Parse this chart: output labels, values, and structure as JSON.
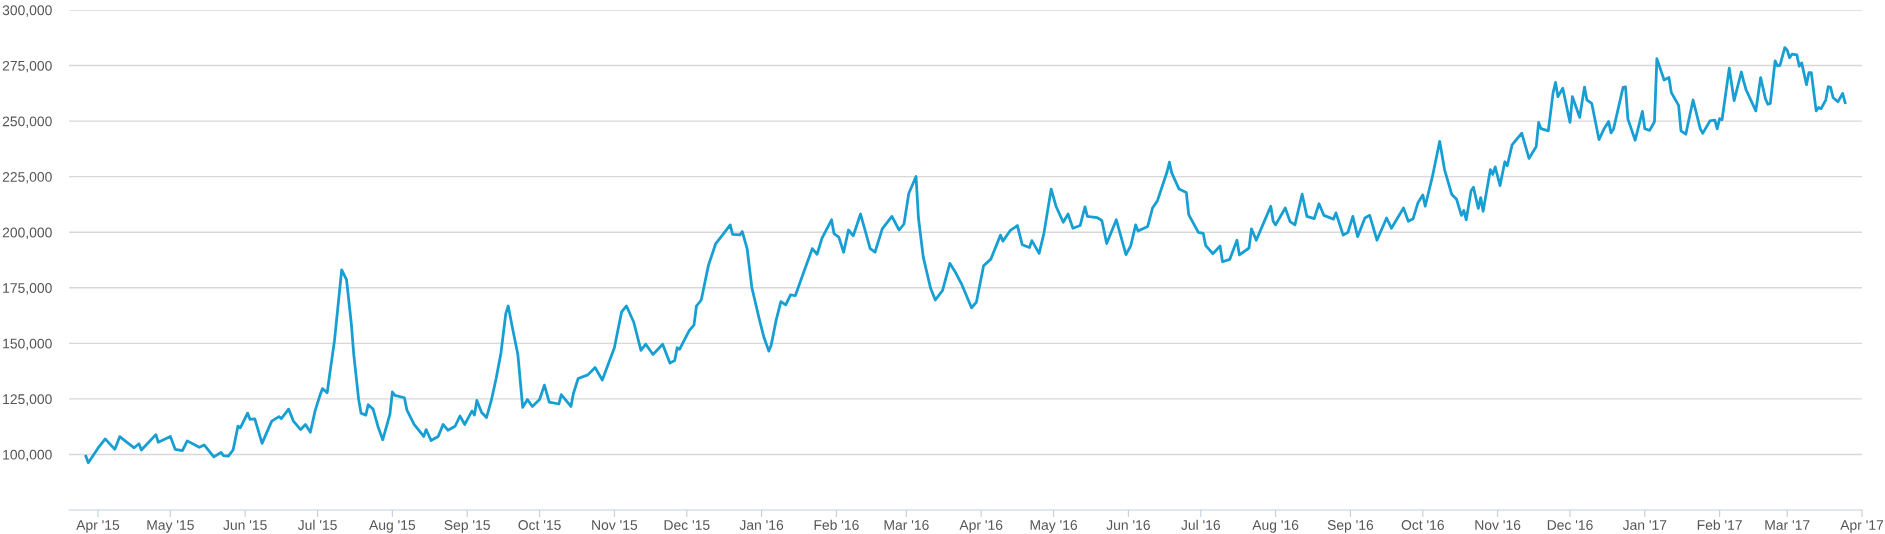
{
  "chart_data": {
    "type": "line",
    "grid": "y",
    "marker": "none",
    "line_style": "solid",
    "xlim": [
      "2015-03-20",
      "2017-04-01"
    ],
    "ylim": [
      75000,
      300000
    ],
    "xticks": [
      {
        "value": "2015-04-01",
        "label": "Apr '15"
      },
      {
        "value": "2015-05-01",
        "label": "May '15"
      },
      {
        "value": "2015-06-01",
        "label": "Jun '15"
      },
      {
        "value": "2015-07-01",
        "label": "Jul '15"
      },
      {
        "value": "2015-08-01",
        "label": "Aug '15"
      },
      {
        "value": "2015-09-01",
        "label": "Sep '15"
      },
      {
        "value": "2015-10-01",
        "label": "Oct '15"
      },
      {
        "value": "2015-11-01",
        "label": "Nov '15"
      },
      {
        "value": "2015-12-01",
        "label": "Dec '15"
      },
      {
        "value": "2016-01-01",
        "label": "Jan '16"
      },
      {
        "value": "2016-02-01",
        "label": "Feb '16"
      },
      {
        "value": "2016-03-01",
        "label": "Mar '16"
      },
      {
        "value": "2016-04-01",
        "label": "Apr '16"
      },
      {
        "value": "2016-05-01",
        "label": "May '16"
      },
      {
        "value": "2016-06-01",
        "label": "Jun '16"
      },
      {
        "value": "2016-07-01",
        "label": "Jul '16"
      },
      {
        "value": "2016-08-01",
        "label": "Aug '16"
      },
      {
        "value": "2016-09-01",
        "label": "Sep '16"
      },
      {
        "value": "2016-10-01",
        "label": "Oct '16"
      },
      {
        "value": "2016-11-01",
        "label": "Nov '16"
      },
      {
        "value": "2016-12-01",
        "label": "Dec '16"
      },
      {
        "value": "2017-01-01",
        "label": "Jan '17"
      },
      {
        "value": "2017-02-01",
        "label": "Feb '17"
      },
      {
        "value": "2017-03-01",
        "label": "Mar '17"
      },
      {
        "value": "2017-04-01",
        "label": "Apr '17"
      }
    ],
    "yticks": [
      {
        "value": 100000,
        "label": "100,000"
      },
      {
        "value": 125000,
        "label": "125,000"
      },
      {
        "value": 150000,
        "label": "150,000"
      },
      {
        "value": 175000,
        "label": "175,000"
      },
      {
        "value": 200000,
        "label": "200,000"
      },
      {
        "value": 225000,
        "label": "225,000"
      },
      {
        "value": 250000,
        "label": "250,000"
      },
      {
        "value": 275000,
        "label": "275,000"
      },
      {
        "value": 300000,
        "label": "300,000"
      }
    ],
    "x": [
      "2015-03-27",
      "2015-03-28",
      "2015-04-01",
      "2015-04-04",
      "2015-04-08",
      "2015-04-10",
      "2015-04-16",
      "2015-04-18",
      "2015-04-19",
      "2015-04-25",
      "2015-04-26",
      "2015-05-01",
      "2015-05-03",
      "2015-05-06",
      "2015-05-08",
      "2015-05-13",
      "2015-05-15",
      "2015-05-19",
      "2015-05-22",
      "2015-05-23",
      "2015-05-25",
      "2015-05-27",
      "2015-05-29",
      "2015-05-30",
      "2015-06-02",
      "2015-06-03",
      "2015-06-05",
      "2015-06-08",
      "2015-06-12",
      "2015-06-15",
      "2015-06-16",
      "2015-06-19",
      "2015-06-21",
      "2015-06-24",
      "2015-06-26",
      "2015-06-28",
      "2015-06-30",
      "2015-07-02",
      "2015-07-03",
      "2015-07-05",
      "2015-07-06",
      "2015-07-08",
      "2015-07-11",
      "2015-07-13",
      "2015-07-15",
      "2015-07-16",
      "2015-07-18",
      "2015-07-19",
      "2015-07-21",
      "2015-07-22",
      "2015-07-24",
      "2015-07-26",
      "2015-07-28",
      "2015-07-31",
      "2015-08-01",
      "2015-08-02",
      "2015-08-06",
      "2015-08-07",
      "2015-08-10",
      "2015-08-14",
      "2015-08-15",
      "2015-08-17",
      "2015-08-20",
      "2015-08-22",
      "2015-08-24",
      "2015-08-27",
      "2015-08-29",
      "2015-08-31",
      "2015-09-03",
      "2015-09-04",
      "2015-09-05",
      "2015-09-07",
      "2015-09-09",
      "2015-09-11",
      "2015-09-13",
      "2015-09-15",
      "2015-09-17",
      "2015-09-18",
      "2015-09-20",
      "2015-09-22",
      "2015-09-24",
      "2015-09-26",
      "2015-09-28",
      "2015-10-01",
      "2015-10-03",
      "2015-10-05",
      "2015-10-09",
      "2015-10-10",
      "2015-10-14",
      "2015-10-15",
      "2015-10-17",
      "2015-10-21",
      "2015-10-24",
      "2015-10-27",
      "2015-11-01",
      "2015-11-04",
      "2015-11-06",
      "2015-11-09",
      "2015-11-12",
      "2015-11-14",
      "2015-11-17",
      "2015-11-21",
      "2015-11-24",
      "2015-11-26",
      "2015-11-27",
      "2015-11-28",
      "2015-12-02",
      "2015-12-04",
      "2015-12-05",
      "2015-12-07",
      "2015-12-10",
      "2015-12-13",
      "2015-12-16",
      "2015-12-19",
      "2015-12-20",
      "2015-12-23",
      "2015-12-24",
      "2015-12-26",
      "2015-12-28",
      "2015-12-31",
      "2016-01-02",
      "2016-01-04",
      "2016-01-05",
      "2016-01-07",
      "2016-01-09",
      "2016-01-11",
      "2016-01-13",
      "2016-01-15",
      "2016-01-18",
      "2016-01-22",
      "2016-01-24",
      "2016-01-26",
      "2016-01-30",
      "2016-01-31",
      "2016-02-02",
      "2016-02-04",
      "2016-02-06",
      "2016-02-08",
      "2016-02-11",
      "2016-02-15",
      "2016-02-17",
      "2016-02-20",
      "2016-02-24",
      "2016-02-27",
      "2016-02-29",
      "2016-03-02",
      "2016-03-05",
      "2016-03-06",
      "2016-03-08",
      "2016-03-11",
      "2016-03-13",
      "2016-03-16",
      "2016-03-19",
      "2016-03-21",
      "2016-03-24",
      "2016-03-28",
      "2016-03-30",
      "2016-04-02",
      "2016-04-05",
      "2016-04-09",
      "2016-04-10",
      "2016-04-13",
      "2016-04-16",
      "2016-04-18",
      "2016-04-21",
      "2016-04-22",
      "2016-04-25",
      "2016-04-27",
      "2016-04-30",
      "2016-05-02",
      "2016-05-05",
      "2016-05-07",
      "2016-05-09",
      "2016-05-12",
      "2016-05-14",
      "2016-05-15",
      "2016-05-19",
      "2016-05-21",
      "2016-05-23",
      "2016-05-27",
      "2016-05-31",
      "2016-06-02",
      "2016-06-04",
      "2016-06-05",
      "2016-06-09",
      "2016-06-11",
      "2016-06-13",
      "2016-06-17",
      "2016-06-18",
      "2016-06-19",
      "2016-06-22",
      "2016-06-25",
      "2016-06-26",
      "2016-06-30",
      "2016-07-02",
      "2016-07-03",
      "2016-07-06",
      "2016-07-09",
      "2016-07-10",
      "2016-07-13",
      "2016-07-16",
      "2016-07-17",
      "2016-07-21",
      "2016-07-22",
      "2016-07-24",
      "2016-07-27",
      "2016-07-30",
      "2016-07-31",
      "2016-08-01",
      "2016-08-05",
      "2016-08-07",
      "2016-08-09",
      "2016-08-12",
      "2016-08-14",
      "2016-08-17",
      "2016-08-19",
      "2016-08-21",
      "2016-08-25",
      "2016-08-26",
      "2016-08-29",
      "2016-08-31",
      "2016-09-02",
      "2016-09-04",
      "2016-09-07",
      "2016-09-09",
      "2016-09-12",
      "2016-09-16",
      "2016-09-18",
      "2016-09-23",
      "2016-09-25",
      "2016-09-27",
      "2016-09-29",
      "2016-10-01",
      "2016-10-02",
      "2016-10-05",
      "2016-10-08",
      "2016-10-10",
      "2016-10-13",
      "2016-10-15",
      "2016-10-17",
      "2016-10-18",
      "2016-10-19",
      "2016-10-21",
      "2016-10-22",
      "2016-10-24",
      "2016-10-25",
      "2016-10-26",
      "2016-10-29",
      "2016-10-30",
      "2016-10-31",
      "2016-11-02",
      "2016-11-04",
      "2016-11-05",
      "2016-11-07",
      "2016-11-11",
      "2016-11-14",
      "2016-11-17",
      "2016-11-18",
      "2016-11-19",
      "2016-11-22",
      "2016-11-24",
      "2016-11-25",
      "2016-11-26",
      "2016-11-28",
      "2016-12-01",
      "2016-12-02",
      "2016-12-05",
      "2016-12-07",
      "2016-12-08",
      "2016-12-10",
      "2016-12-13",
      "2016-12-15",
      "2016-12-17",
      "2016-12-18",
      "2016-12-19",
      "2016-12-23",
      "2016-12-24",
      "2016-12-25",
      "2016-12-28",
      "2016-12-31",
      "2017-01-01",
      "2017-01-03",
      "2017-01-05",
      "2017-01-06",
      "2017-01-09",
      "2017-01-11",
      "2017-01-12",
      "2017-01-15",
      "2017-01-16",
      "2017-01-18",
      "2017-01-19",
      "2017-01-21",
      "2017-01-24",
      "2017-01-25",
      "2017-01-28",
      "2017-01-30",
      "2017-01-31",
      "2017-02-01",
      "2017-02-02",
      "2017-02-05",
      "2017-02-07",
      "2017-02-10",
      "2017-02-11",
      "2017-02-12",
      "2017-02-16",
      "2017-02-18",
      "2017-02-20",
      "2017-02-21",
      "2017-02-22",
      "2017-02-24",
      "2017-02-25",
      "2017-02-26",
      "2017-02-28",
      "2017-03-01",
      "2017-03-02",
      "2017-03-03",
      "2017-03-05",
      "2017-03-06",
      "2017-03-07",
      "2017-03-09",
      "2017-03-10",
      "2017-03-11",
      "2017-03-13",
      "2017-03-14",
      "2017-03-15",
      "2017-03-17",
      "2017-03-18",
      "2017-03-19",
      "2017-03-20",
      "2017-03-22",
      "2017-03-24",
      "2017-03-25"
    ],
    "series": [
      {
        "color": "#179fd4",
        "values": [
          99200,
          96300,
          102800,
          107000,
          102300,
          108000,
          103000,
          104800,
          102000,
          108900,
          105500,
          108100,
          102300,
          101700,
          106100,
          103200,
          104300,
          98900,
          100900,
          99500,
          99200,
          102000,
          112700,
          112000,
          118600,
          115800,
          116000,
          105000,
          115000,
          117000,
          116100,
          120400,
          115000,
          111200,
          113500,
          110000,
          119700,
          126600,
          129600,
          127800,
          135800,
          151100,
          183000,
          178700,
          158800,
          145000,
          125000,
          118600,
          117700,
          122400,
          120400,
          112700,
          106600,
          118100,
          128100,
          126600,
          125500,
          120100,
          113500,
          108100,
          111200,
          106300,
          108100,
          113500,
          110900,
          112700,
          117300,
          113500,
          119600,
          117700,
          124300,
          118900,
          116600,
          124300,
          134200,
          145700,
          163400,
          166800,
          155700,
          145000,
          121200,
          124700,
          121600,
          124700,
          131200,
          123500,
          122700,
          126900,
          121600,
          127300,
          134200,
          135800,
          139100,
          133500,
          148000,
          164200,
          166800,
          159600,
          146800,
          149600,
          145000,
          149600,
          141100,
          142300,
          148000,
          147300,
          155700,
          158300,
          166800,
          169500,
          185200,
          194900,
          199000,
          203300,
          199000,
          198800,
          200300,
          192600,
          174900,
          161100,
          152600,
          146500,
          149300,
          160300,
          168800,
          167300,
          171800,
          171500,
          180600,
          192600,
          190100,
          197200,
          205600,
          199400,
          197800,
          191000,
          201000,
          198400,
          208200,
          192600,
          191000,
          201500,
          207100,
          201000,
          203700,
          217400,
          225100,
          206400,
          188800,
          174900,
          169500,
          173800,
          186000,
          182600,
          176400,
          166000,
          168500,
          184900,
          187900,
          198700,
          196000,
          200700,
          203000,
          194400,
          193100,
          196200,
          190500,
          199500,
          219400,
          211700,
          204500,
          208200,
          201800,
          203000,
          211400,
          207100,
          206600,
          205300,
          194900,
          205600,
          189900,
          194000,
          203300,
          200500,
          202600,
          210900,
          214100,
          227100,
          231500,
          226600,
          219400,
          217900,
          207900,
          199900,
          199500,
          194100,
          190300,
          193800,
          186700,
          187800,
          196400,
          189800,
          192900,
          201500,
          196400,
          204100,
          211700,
          204900,
          203300,
          210900,
          204800,
          203300,
          217100,
          207100,
          206100,
          212800,
          207600,
          205900,
          208700,
          198700,
          200000,
          207100,
          198000,
          206400,
          207600,
          196400,
          206400,
          201800,
          210900,
          204900,
          206100,
          213300,
          216800,
          211700,
          225100,
          240900,
          228200,
          217000,
          214800,
          207600,
          209800,
          205600,
          218600,
          220200,
          210700,
          215600,
          209400,
          228200,
          226000,
          229400,
          221000,
          231700,
          229900,
          239300,
          244600,
          233200,
          238600,
          249400,
          246600,
          245600,
          262800,
          267400,
          261000,
          264800,
          249400,
          261000,
          251700,
          265300,
          259500,
          258000,
          241700,
          246300,
          249800,
          244700,
          246300,
          265200,
          265400,
          250900,
          241400,
          254400,
          246600,
          245800,
          249700,
          278100,
          268500,
          269600,
          262800,
          257100,
          245600,
          244100,
          249400,
          259500,
          246500,
          244500,
          250100,
          250400,
          246500,
          251100,
          250600,
          273800,
          259200,
          272100,
          267800,
          264000,
          254600,
          269600,
          260000,
          257600,
          258000,
          277100,
          274800,
          275100,
          283100,
          281900,
          278500,
          280100,
          279800,
          274700,
          276200,
          266400,
          271800,
          271800,
          254600,
          256100,
          255500,
          259600,
          265500,
          265200,
          260600,
          258700,
          262400,
          258300
        ]
      }
    ]
  }
}
